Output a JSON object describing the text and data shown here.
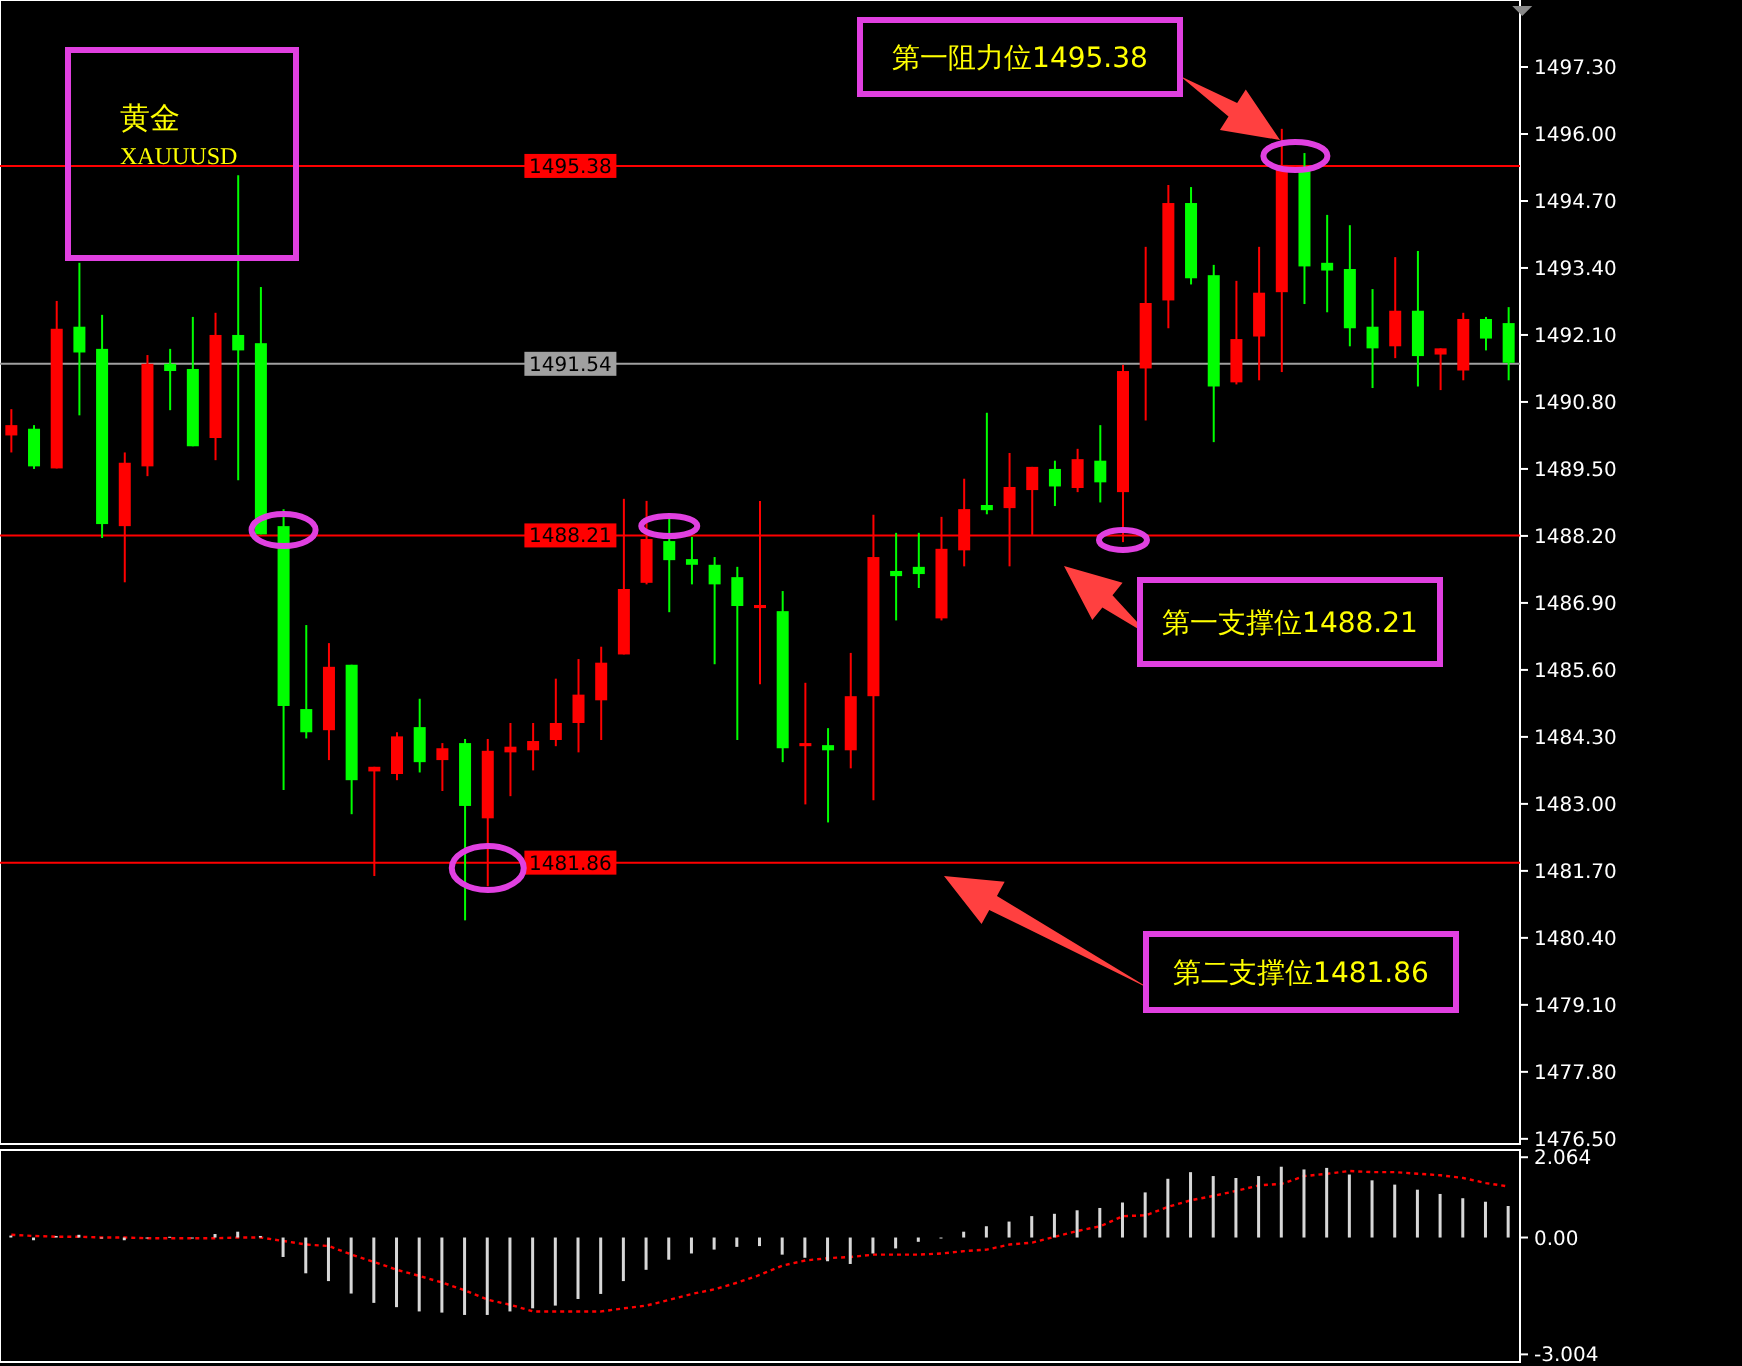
{
  "chart_data": [
    {
      "type": "candlestick",
      "title": "黄金",
      "subtitle": "XAUUUSD",
      "categories": [
        null,
        null,
        null,
        null,
        null,
        null,
        null,
        null,
        null,
        null,
        null,
        null,
        null,
        null,
        null,
        null,
        null,
        null,
        null,
        null,
        null,
        null,
        null,
        null,
        null,
        null,
        null,
        null,
        null,
        null,
        null,
        null,
        null,
        null,
        null,
        null,
        null,
        null,
        null,
        null,
        null,
        null,
        null,
        null,
        null,
        null,
        null,
        null,
        null,
        null,
        null,
        null,
        null,
        null,
        null,
        null,
        null,
        null,
        null,
        null,
        null,
        null,
        null,
        null,
        null,
        null,
        null
      ],
      "ohlc": [
        [
          1490.15,
          1490.66,
          1489.82,
          1490.35
        ],
        [
          1490.28,
          1490.35,
          1489.5,
          1489.55
        ],
        [
          1489.51,
          1492.76,
          1489.51,
          1492.22
        ],
        [
          1492.26,
          1493.5,
          1490.54,
          1491.76
        ],
        [
          1491.83,
          1492.49,
          1488.16,
          1488.43
        ],
        [
          1488.39,
          1489.82,
          1487.3,
          1489.62
        ],
        [
          1489.55,
          1491.71,
          1489.36,
          1491.54
        ],
        [
          1491.54,
          1491.83,
          1490.64,
          1491.4
        ],
        [
          1491.44,
          1492.45,
          1489.94,
          1489.94
        ],
        [
          1490.1,
          1492.53,
          1489.67,
          1492.1
        ],
        [
          1492.1,
          1495.2,
          1489.28,
          1491.8
        ],
        [
          1491.94,
          1493.03,
          1488.23,
          1488.23
        ],
        [
          1488.39,
          1488.72,
          1483.27,
          1484.9
        ],
        [
          1484.84,
          1486.47,
          1484.27,
          1484.39
        ],
        [
          1484.43,
          1486.12,
          1483.85,
          1485.66
        ],
        [
          1485.7,
          1485.7,
          1482.8,
          1483.46
        ],
        [
          1483.63,
          1483.72,
          1481.6,
          1483.72
        ],
        [
          1483.58,
          1484.39,
          1483.46,
          1484.31
        ],
        [
          1484.49,
          1485.04,
          1483.61,
          1483.81
        ],
        [
          1483.85,
          1484.18,
          1483.25,
          1484.08
        ],
        [
          1484.18,
          1484.26,
          1480.74,
          1482.96
        ],
        [
          1482.72,
          1484.26,
          1481.4,
          1484.03
        ],
        [
          1484.0,
          1484.57,
          1483.15,
          1484.11
        ],
        [
          1484.04,
          1484.57,
          1483.65,
          1484.22
        ],
        [
          1484.24,
          1485.43,
          1484.12,
          1484.57
        ],
        [
          1484.57,
          1485.81,
          1484.0,
          1485.12
        ],
        [
          1485.01,
          1486.05,
          1484.24,
          1485.74
        ],
        [
          1485.9,
          1488.92,
          1485.9,
          1487.17
        ],
        [
          1487.29,
          1488.88,
          1487.26,
          1488.14
        ],
        [
          1488.1,
          1488.61,
          1486.72,
          1487.73
        ],
        [
          1487.75,
          1488.18,
          1487.26,
          1487.64
        ],
        [
          1487.64,
          1487.79,
          1485.71,
          1487.26
        ],
        [
          1487.4,
          1487.6,
          1484.24,
          1486.84
        ],
        [
          1486.8,
          1488.88,
          1485.32,
          1486.86
        ],
        [
          1486.74,
          1487.13,
          1483.81,
          1484.08
        ],
        [
          1484.12,
          1485.35,
          1482.99,
          1484.18
        ],
        [
          1484.14,
          1484.47,
          1482.64,
          1484.04
        ],
        [
          1484.04,
          1485.93,
          1483.69,
          1485.09
        ],
        [
          1485.09,
          1488.61,
          1483.07,
          1487.79
        ],
        [
          1487.52,
          1488.26,
          1486.56,
          1487.42
        ],
        [
          1487.6,
          1488.26,
          1487.19,
          1487.46
        ],
        [
          1486.6,
          1488.57,
          1486.56,
          1487.95
        ],
        [
          1487.92,
          1489.31,
          1487.61,
          1488.72
        ],
        [
          1488.8,
          1490.59,
          1488.62,
          1488.7
        ],
        [
          1488.74,
          1489.81,
          1487.61,
          1489.15
        ],
        [
          1489.09,
          1489.54,
          1488.22,
          1489.54
        ],
        [
          1489.5,
          1489.66,
          1488.78,
          1489.16
        ],
        [
          1489.13,
          1489.89,
          1489.05,
          1489.69
        ],
        [
          1489.66,
          1490.35,
          1488.85,
          1489.24
        ],
        [
          1489.05,
          1491.52,
          1488.08,
          1491.4
        ],
        [
          1491.45,
          1493.81,
          1490.44,
          1492.72
        ],
        [
          1492.77,
          1495.01,
          1492.23,
          1494.66
        ],
        [
          1494.66,
          1494.97,
          1493.08,
          1493.2
        ],
        [
          1493.26,
          1493.46,
          1490.02,
          1491.1
        ],
        [
          1491.18,
          1493.15,
          1491.14,
          1492.02
        ],
        [
          1492.07,
          1493.81,
          1491.22,
          1492.92
        ],
        [
          1492.93,
          1496.1,
          1491.38,
          1495.4
        ],
        [
          1495.28,
          1495.63,
          1492.7,
          1493.43
        ],
        [
          1493.5,
          1494.43,
          1492.54,
          1493.35
        ],
        [
          1493.38,
          1494.23,
          1491.88,
          1492.23
        ],
        [
          1492.26,
          1492.99,
          1491.07,
          1491.84
        ],
        [
          1491.88,
          1493.61,
          1491.65,
          1492.57
        ],
        [
          1492.57,
          1493.73,
          1491.1,
          1491.69
        ],
        [
          1491.72,
          1491.84,
          1491.03,
          1491.84
        ],
        [
          1491.41,
          1492.53,
          1491.22,
          1492.41
        ],
        [
          1492.41,
          1492.45,
          1491.8,
          1492.03
        ],
        [
          1492.33,
          1492.64,
          1491.22,
          1491.56
        ]
      ],
      "colors": [
        "#ff0000",
        "#00ff00",
        "#ff0000",
        "#00ff00",
        "#00ff00",
        "#ff0000",
        "#ff0000",
        "#00ff00",
        "#00ff00",
        "#ff0000",
        "#00ff00",
        "#00ff00",
        "#00ff00",
        "#00ff00",
        "#ff0000",
        "#00ff00",
        "#ff0000",
        "#ff0000",
        "#00ff00",
        "#ff0000",
        "#00ff00",
        "#ff0000",
        "#ff0000",
        "#ff0000",
        "#ff0000",
        "#ff0000",
        "#ff0000",
        "#ff0000",
        "#ff0000",
        "#00ff00",
        "#00ff00",
        "#00ff00",
        "#00ff00",
        "#ff0000",
        "#00ff00",
        "#ff0000",
        "#00ff00",
        "#ff0000",
        "#ff0000",
        "#00ff00",
        "#00ff00",
        "#ff0000",
        "#ff0000",
        "#00ff00",
        "#ff0000",
        "#ff0000",
        "#00ff00",
        "#ff0000",
        "#00ff00",
        "#ff0000",
        "#ff0000",
        "#ff0000",
        "#00ff00",
        "#00ff00",
        "#ff0000",
        "#ff0000",
        "#ff0000",
        "#00ff00",
        "#00ff00",
        "#00ff00",
        "#00ff00",
        "#ff0000",
        "#00ff00",
        "#ff0000",
        "#ff0000",
        "#00ff00",
        "#00ff00"
      ],
      "ylim": [
        1476.4,
        1498.6
      ],
      "yticks": [
        {
          "value": 1476.5,
          "label": "1476.50"
        },
        {
          "value": 1477.8,
          "label": "1477.80"
        },
        {
          "value": 1479.1,
          "label": "1479.10"
        },
        {
          "value": 1480.4,
          "label": "1480.40"
        },
        {
          "value": 1481.7,
          "label": "1481.70"
        },
        {
          "value": 1483.0,
          "label": "1483.00"
        },
        {
          "value": 1484.3,
          "label": "1484.30"
        },
        {
          "value": 1485.6,
          "label": "1485.60"
        },
        {
          "value": 1486.9,
          "label": "1486.90"
        },
        {
          "value": 1488.2,
          "label": "1488.20"
        },
        {
          "value": 1489.5,
          "label": "1489.50"
        },
        {
          "value": 1490.8,
          "label": "1490.80"
        },
        {
          "value": 1492.1,
          "label": "1492.10"
        },
        {
          "value": 1493.4,
          "label": "1493.40"
        },
        {
          "value": 1494.7,
          "label": "1494.70"
        },
        {
          "value": 1496.0,
          "label": "1496.00"
        },
        {
          "value": 1497.3,
          "label": "1497.30"
        }
      ],
      "tick_labels": "y",
      "ref_lines": [
        {
          "axis": "y",
          "value": 1495.38,
          "label": "1495.38",
          "color": "#ff0000"
        },
        {
          "axis": "y",
          "value": 1491.54,
          "label": "1491.54",
          "color": "#a0a0a0"
        },
        {
          "axis": "y",
          "value": 1488.21,
          "label": "1488.21",
          "color": "#ff0000"
        },
        {
          "axis": "y",
          "value": 1481.86,
          "label": "1481.86",
          "color": "#ff0000"
        }
      ],
      "annotations": [
        "第一阻力位1495.38",
        "第一支撑位1488.21",
        "第二支撑位1481.86"
      ]
    },
    {
      "type": "bar",
      "categories": [
        null,
        null,
        null,
        null,
        null,
        null,
        null,
        null,
        null,
        null,
        null,
        null,
        null,
        null,
        null,
        null,
        null,
        null,
        null,
        null,
        null,
        null,
        null,
        null,
        null,
        null,
        null,
        null,
        null,
        null,
        null,
        null,
        null,
        null,
        null,
        null,
        null,
        null,
        null,
        null,
        null,
        null,
        null,
        null,
        null,
        null,
        null,
        null,
        null,
        null,
        null,
        null,
        null,
        null,
        null,
        null,
        null,
        null,
        null,
        null,
        null,
        null,
        null,
        null,
        null,
        null,
        null
      ],
      "series": [
        {
          "type": "bar",
          "color": "#d8d8d8",
          "values": [
            0.05,
            -0.07,
            0.04,
            0.07,
            0,
            -0.07,
            0,
            0.02,
            0,
            0.09,
            0.15,
            0.04,
            -0.5,
            -0.92,
            -1.12,
            -1.44,
            -1.68,
            -1.79,
            -1.9,
            -1.93,
            -1.99,
            -1.99,
            -1.9,
            -1.82,
            -1.75,
            -1.58,
            -1.45,
            -1.12,
            -0.83,
            -0.57,
            -0.41,
            -0.31,
            -0.24,
            -0.22,
            -0.44,
            -0.52,
            -0.61,
            -0.68,
            -0.41,
            -0.28,
            -0.11,
            0,
            0.15,
            0.29,
            0.41,
            0.55,
            0.61,
            0.7,
            0.76,
            0.9,
            1.16,
            1.51,
            1.68,
            1.58,
            1.53,
            1.58,
            1.82,
            1.75,
            1.79,
            1.62,
            1.47,
            1.36,
            1.23,
            1.12,
            1.01,
            0.92,
            0.81
          ]
        },
        {
          "type": "line",
          "color": "#ff0000",
          "line_style": "dotted",
          "values": [
            0.07,
            0.04,
            0.02,
            0.02,
            0,
            0,
            -0.02,
            -0.02,
            -0.02,
            -0.02,
            0,
            0,
            -0.09,
            -0.18,
            -0.22,
            -0.44,
            -0.63,
            -0.83,
            -0.99,
            -1.16,
            -1.36,
            -1.6,
            -1.73,
            -1.9,
            -1.9,
            -1.9,
            -1.9,
            -1.82,
            -1.75,
            -1.6,
            -1.45,
            -1.33,
            -1.16,
            -0.96,
            -0.72,
            -0.59,
            -0.53,
            -0.5,
            -0.44,
            -0.44,
            -0.44,
            -0.41,
            -0.35,
            -0.31,
            -0.18,
            -0.13,
            0.02,
            0.17,
            0.29,
            0.55,
            0.57,
            0.79,
            0.96,
            1.07,
            1.2,
            1.34,
            1.38,
            1.58,
            1.64,
            1.71,
            1.68,
            1.68,
            1.64,
            1.6,
            1.53,
            1.4,
            1.31
          ]
        }
      ],
      "ylim": [
        -3.2,
        2.25
      ],
      "yticks": [
        {
          "value": 2.064,
          "label": "2.064"
        },
        {
          "value": 0,
          "label": "0.00"
        },
        {
          "value": -3.004,
          "label": "-3.004"
        }
      ],
      "tick_labels": "y"
    }
  ]
}
